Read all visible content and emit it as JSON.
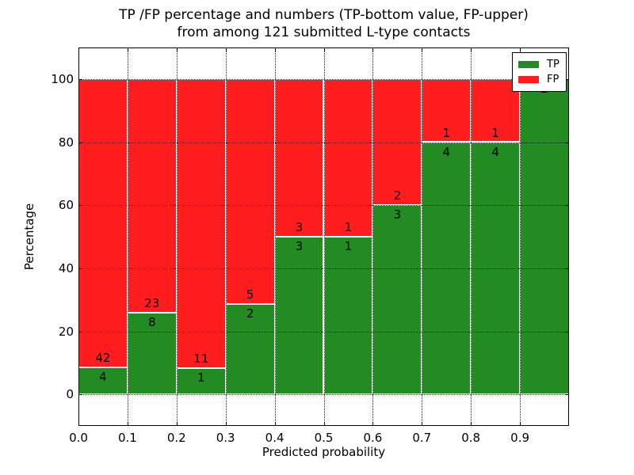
{
  "title": {
    "line1": "TP /FP percentage and numbers (TP-bottom value, FP-upper)",
    "line2": "from among 121 submitted L-type contacts"
  },
  "axes": {
    "xlabel": "Predicted probability",
    "ylabel": "Percentage"
  },
  "legend": {
    "items": [
      {
        "label": "TP",
        "color": "#228B22"
      },
      {
        "label": "FP",
        "color": "#FF1D1D"
      }
    ]
  },
  "chart_data": {
    "type": "bar",
    "stacked": true,
    "title": "TP /FP percentage and numbers (TP-bottom value, FP-upper) from among 121 submitted L-type contacts",
    "xlabel": "Predicted probability",
    "ylabel": "Percentage",
    "bin_edges": [
      0.0,
      0.1,
      0.2,
      0.3,
      0.4,
      0.5,
      0.6,
      0.7,
      0.8,
      0.9,
      1.0
    ],
    "categories": [
      "0.0-0.1",
      "0.1-0.2",
      "0.2-0.3",
      "0.3-0.4",
      "0.4-0.5",
      "0.5-0.6",
      "0.6-0.7",
      "0.7-0.8",
      "0.8-0.9",
      "0.9-1.0"
    ],
    "series": [
      {
        "name": "TP",
        "color": "#228B22",
        "counts": [
          4,
          8,
          1,
          2,
          3,
          1,
          3,
          4,
          4,
          2
        ]
      },
      {
        "name": "FP",
        "color": "#FF1D1D",
        "counts": [
          42,
          23,
          11,
          5,
          3,
          1,
          2,
          1,
          1,
          0
        ]
      }
    ],
    "tp_percentages": [
      8.7,
      25.8,
      8.3,
      28.6,
      50.0,
      50.0,
      60.0,
      80.0,
      80.0,
      100.0
    ],
    "total_contacts": 121,
    "xlim": [
      0.0,
      1.0
    ],
    "ylim": [
      -10,
      110
    ],
    "xticks": [
      "0.0",
      "0.1",
      "0.2",
      "0.3",
      "0.4",
      "0.5",
      "0.6",
      "0.7",
      "0.8",
      "0.9"
    ],
    "yticks": [
      0,
      20,
      40,
      60,
      80,
      100
    ],
    "grid": true,
    "grid_style": "dotted",
    "legend_position": "upper right",
    "bar_edge_color": "#ffffff"
  }
}
